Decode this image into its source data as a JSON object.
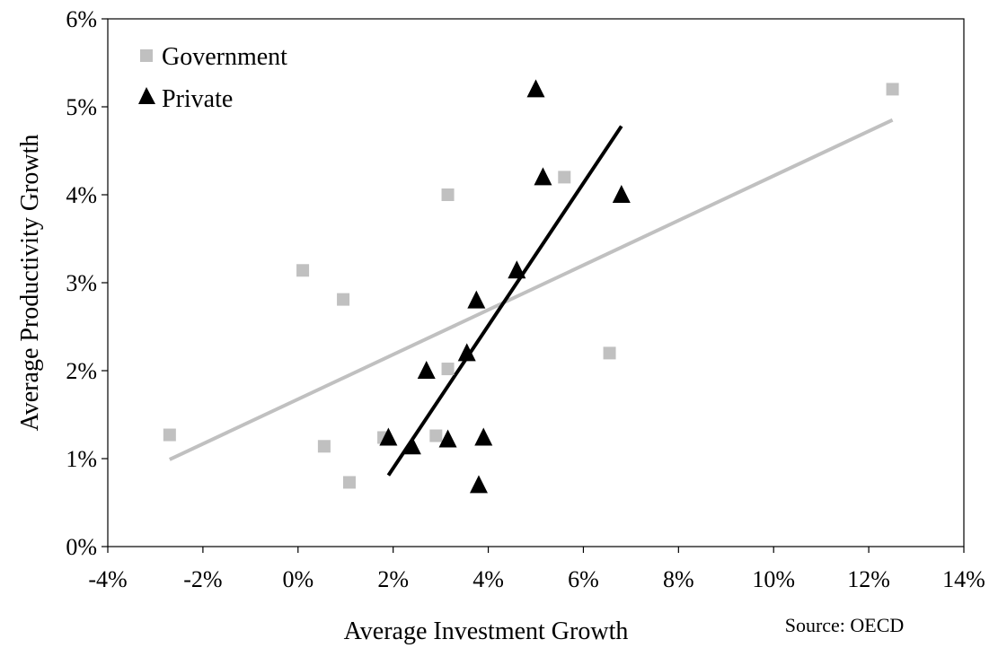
{
  "chart_data": {
    "type": "scatter",
    "xlabel": "Average Investment Growth",
    "ylabel": "Average Productivity Growth",
    "source": "Source: OECD",
    "xlim": [
      -4,
      14
    ],
    "ylim": [
      0,
      6
    ],
    "x_ticks": [
      -4,
      -2,
      0,
      2,
      4,
      6,
      8,
      10,
      12,
      14
    ],
    "y_ticks": [
      0,
      1,
      2,
      3,
      4,
      5,
      6
    ],
    "x_tick_labels": [
      "-4%",
      "-2%",
      "0%",
      "2%",
      "4%",
      "6%",
      "8%",
      "10%",
      "12%",
      "14%"
    ],
    "y_tick_labels": [
      "0%",
      "1%",
      "2%",
      "3%",
      "4%",
      "5%",
      "6%"
    ],
    "grid": false,
    "legend_position": "top-left",
    "series": [
      {
        "name": "Government",
        "marker": "square",
        "color": "#c0c0c0",
        "points": [
          {
            "x": -2.7,
            "y": 1.27
          },
          {
            "x": 0.1,
            "y": 3.14
          },
          {
            "x": 0.95,
            "y": 2.81
          },
          {
            "x": 0.55,
            "y": 1.14
          },
          {
            "x": 1.08,
            "y": 0.73
          },
          {
            "x": 1.8,
            "y": 1.24
          },
          {
            "x": 2.9,
            "y": 1.26
          },
          {
            "x": 3.15,
            "y": 2.02
          },
          {
            "x": 3.15,
            "y": 4.0
          },
          {
            "x": 5.6,
            "y": 4.2
          },
          {
            "x": 6.55,
            "y": 2.2
          },
          {
            "x": 12.5,
            "y": 5.2
          }
        ],
        "trendline": {
          "x": [
            -2.7,
            12.5
          ],
          "y": [
            0.99,
            4.85
          ]
        }
      },
      {
        "name": "Private",
        "marker": "triangle",
        "color": "#000000",
        "points": [
          {
            "x": 1.9,
            "y": 1.24
          },
          {
            "x": 2.4,
            "y": 1.14
          },
          {
            "x": 2.7,
            "y": 2.0
          },
          {
            "x": 3.15,
            "y": 1.22
          },
          {
            "x": 3.55,
            "y": 2.2
          },
          {
            "x": 3.75,
            "y": 2.8
          },
          {
            "x": 3.8,
            "y": 0.7
          },
          {
            "x": 3.9,
            "y": 1.24
          },
          {
            "x": 4.6,
            "y": 3.14
          },
          {
            "x": 5.0,
            "y": 5.2
          },
          {
            "x": 5.15,
            "y": 4.2
          },
          {
            "x": 6.8,
            "y": 4.0
          }
        ],
        "trendline": {
          "x": [
            1.9,
            6.8
          ],
          "y": [
            0.81,
            4.78
          ]
        }
      }
    ]
  }
}
